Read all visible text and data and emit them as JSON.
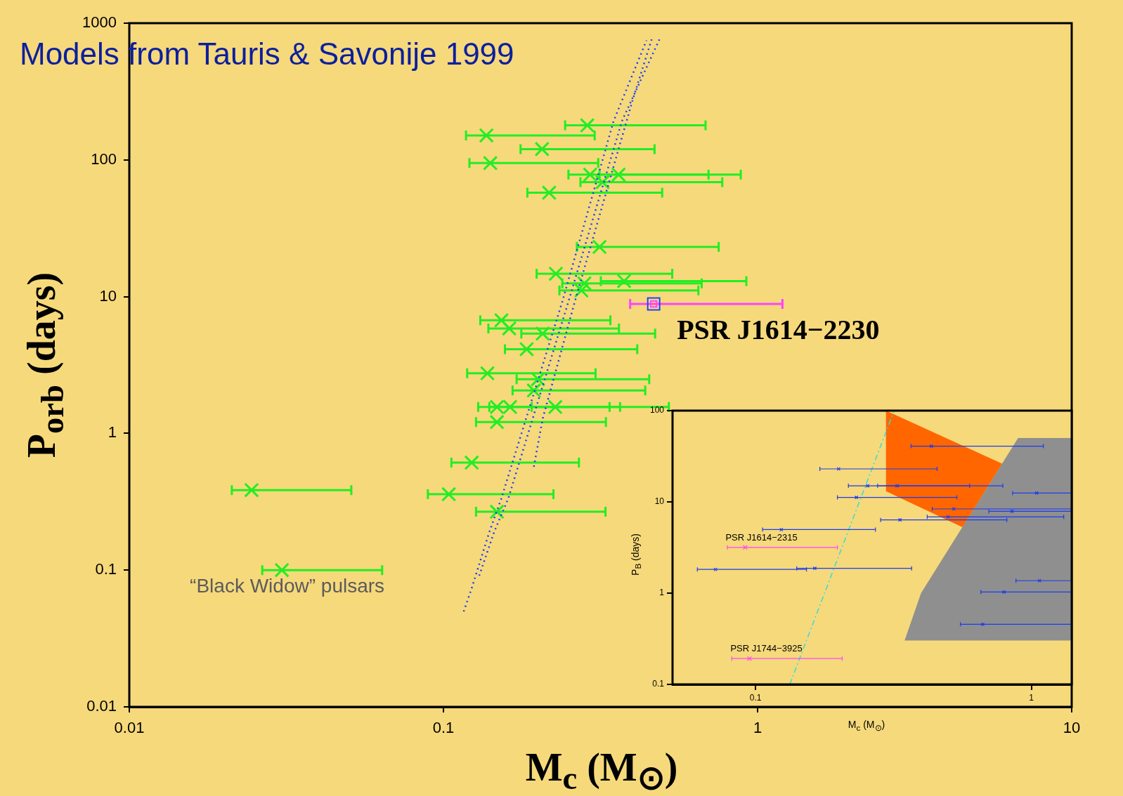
{
  "chart_data": [
    {
      "type": "scatter",
      "xlabel": "M$_{c}$ (M$_{⊙}$)",
      "ylabel": "P$_{orb}$ (days)",
      "log": "xy",
      "xlim": [
        0.01,
        10
      ],
      "ylim": [
        0.01,
        1000
      ],
      "xticks": [
        0.01,
        0.1,
        1,
        10
      ],
      "yticks": [
        0.01,
        0.1,
        1,
        10,
        100,
        1000
      ],
      "annotations": [
        "Models from Tauris & Savonije 1999",
        {
          "text": "PSR J1614−2230",
          "x": 0.467,
          "y": 8.85
        },
        {
          "text": "“Black Widow” pulsars",
          "x": 0.0306,
          "y": 0.1
        }
      ],
      "series": [
        {
          "color": "#22ee22",
          "marker": "cross",
          "x": [
            0.287,
            0.137,
            0.206,
            0.141,
            0.293,
            0.361,
            0.321,
            0.217,
            0.314,
            0.228,
            0.376,
            0.281,
            0.275,
            0.153,
            0.162,
            0.207,
            0.184,
            0.138,
            0.2,
            0.194,
            0.148,
            0.163,
            0.227,
            0.148,
            0.123,
            0.104,
            0.148,
            0.0245,
            0.0306
          ],
          "values": [
            179,
            151,
            120,
            94.8,
            78,
            78,
            68.7,
            57.5,
            23.1,
            14.7,
            13,
            12.5,
            11.1,
            6.71,
            5.85,
            5.36,
            4.13,
            2.75,
            2.49,
            2.06,
            1.56,
            1.56,
            1.56,
            1.21,
            0.611,
            0.359,
            0.267,
            0.385,
            0.1
          ],
          "xerrors": [
            [
              0.244,
              0.683
            ],
            [
              0.118,
              0.303
            ],
            [
              0.176,
              0.47
            ],
            [
              0.121,
              0.311
            ],
            [
              0.25,
              0.698
            ],
            [
              0.314,
              0.884
            ],
            [
              0.273,
              0.772
            ],
            [
              0.185,
              0.497
            ],
            [
              0.266,
              0.752
            ],
            [
              0.198,
              0.535
            ],
            [
              0.317,
              0.921
            ],
            [
              0.239,
              0.664
            ],
            [
              0.234,
              0.648
            ],
            [
              0.131,
              0.34
            ],
            [
              0.139,
              0.362
            ],
            [
              0.177,
              0.472
            ],
            [
              0.157,
              0.414
            ],
            [
              0.119,
              0.305
            ],
            [
              0.171,
              0.452
            ],
            [
              0.166,
              0.439
            ],
            [
              0.129,
              0.338
            ],
            [
              0.14,
              0.365
            ],
            [
              0.191,
              0.522
            ],
            [
              0.127,
              0.329
            ],
            [
              0.106,
              0.27
            ],
            [
              0.0892,
              0.224
            ],
            [
              0.127,
              0.328
            ],
            [
              0.0212,
              0.0509
            ],
            [
              0.0265,
              0.0638
            ]
          ]
        },
        {
          "type": "scatter",
          "color": "#ff44ff",
          "marker": "square",
          "x": [
            0.467
          ],
          "values": [
            8.85
          ],
          "xerrors": [
            [
              0.393,
              1.2
            ]
          ]
        },
        {
          "type": "scatter",
          "color": "#2244ff",
          "marker": "square",
          "x": [
            0.467
          ],
          "values": [
            8.85
          ]
        },
        {
          "type": "line",
          "color": "#1a3cff",
          "line_style": "dotted",
          "marker": "none",
          "x": [
            0.116,
            0.123,
            0.14,
            0.153,
            0.239,
            0.348,
            0.443
          ],
          "values": [
            0.0498,
            0.0736,
            0.19,
            0.336,
            9.2,
            192,
            748
          ]
        },
        {
          "type": "line",
          "color": "#1a3cff",
          "line_style": "dotted",
          "marker": "none",
          "x": [
            0.13,
            0.145,
            0.161,
            0.25,
            0.37,
            0.49
          ],
          "values": [
            0.091,
            0.19,
            0.336,
            9.2,
            192,
            785
          ]
        },
        {
          "type": "line",
          "color": "#1a3cff",
          "line_style": "dotted",
          "marker": "none",
          "x": [
            0.194,
            0.207,
            0.262,
            0.4,
            0.46
          ],
          "values": [
            0.57,
            1.28,
            9.2,
            273,
            760
          ]
        }
      ]
    },
    {
      "type": "scatter",
      "xlabel": "M$_{c}$ (M$_{⊙}$)",
      "ylabel": "P$_{B}$ (days)",
      "log": "xy",
      "xlim": [
        0.05,
        1.4
      ],
      "ylim": [
        0.1,
        100
      ],
      "xticks": [
        0.1,
        1
      ],
      "yticks": [
        0.1,
        1,
        10,
        100
      ],
      "annotations": [
        {
          "text": "PSR J1614−2315",
          "x": 0.0917,
          "y": 3.17
        },
        {
          "text": "PSR J1744−3925",
          "x": 0.095,
          "y": 0.192
        }
      ],
      "series": [
        {
          "type": "area",
          "color": "#8f8f8f",
          "x": [
            0.895,
            1.4,
            1.4,
            0.347,
            0.398,
            0.895
          ],
          "values": [
            50.1,
            50.1,
            0.303,
            0.303,
            1.0,
            50.1
          ]
        },
        {
          "type": "area",
          "color": "#ff6600",
          "x": [
            0.297,
            0.783,
            0.562,
            0.297,
            0.297
          ],
          "values": [
            100,
            26.3,
            5.28,
            13.1,
            100
          ]
        },
        {
          "type": "line",
          "color": "#33dddd",
          "line_style": "dashed",
          "marker": "none",
          "x": [
            0.133,
            0.318
          ],
          "values": [
            0.1,
            100
          ]
        },
        {
          "color": "#1a3cf0",
          "marker": "cross",
          "x": [
            0.434,
            0.2,
            0.255,
            0.326,
            0.232,
            1.045,
            0.523,
            0.85,
            0.499,
            0.334,
            0.124,
            0.0716,
            0.164,
            1.07,
            0.795,
            0.666
          ],
          "values": [
            40.8,
            23.0,
            15.0,
            15.0,
            11.2,
            12.5,
            8.38,
            7.89,
            6.86,
            6.35,
            4.97,
            1.82,
            1.87,
            1.37,
            1.03,
            0.456
          ],
          "xerrors": [
            [
              0.366,
              1.105
            ],
            [
              0.171,
              0.455
            ],
            [
              0.217,
              0.597
            ],
            [
              0.277,
              0.788
            ],
            [
              0.198,
              0.537
            ],
            [
              0.855,
              1.4
            ],
            [
              0.437,
              1.4
            ],
            [
              0.701,
              1.4
            ],
            [
              0.419,
              1.31
            ],
            [
              0.284,
              0.815
            ],
            [
              0.106,
              0.272
            ],
            [
              0.0615,
              0.153
            ],
            [
              0.141,
              0.368
            ],
            [
              0.879,
              1.4
            ],
            [
              0.656,
              1.4
            ],
            [
              0.553,
              1.4
            ]
          ]
        },
        {
          "type": "scatter",
          "color": "#ff44ff",
          "marker": "cross",
          "x": [
            0.0917,
            0.095
          ],
          "values": [
            3.17,
            0.192
          ],
          "xerrors": [
            [
              0.079,
              0.198
            ],
            [
              0.082,
              0.206
            ]
          ]
        }
      ]
    }
  ]
}
